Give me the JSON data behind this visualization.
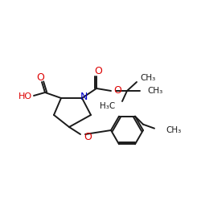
{
  "bg_color": "#ffffff",
  "bond_color": "#1a1a1a",
  "N_color": "#0000cc",
  "O_color": "#dd0000",
  "figsize": [
    2.5,
    2.5
  ],
  "dpi": 100,
  "xlim": [
    0,
    250
  ],
  "ylim": [
    0,
    250
  ]
}
